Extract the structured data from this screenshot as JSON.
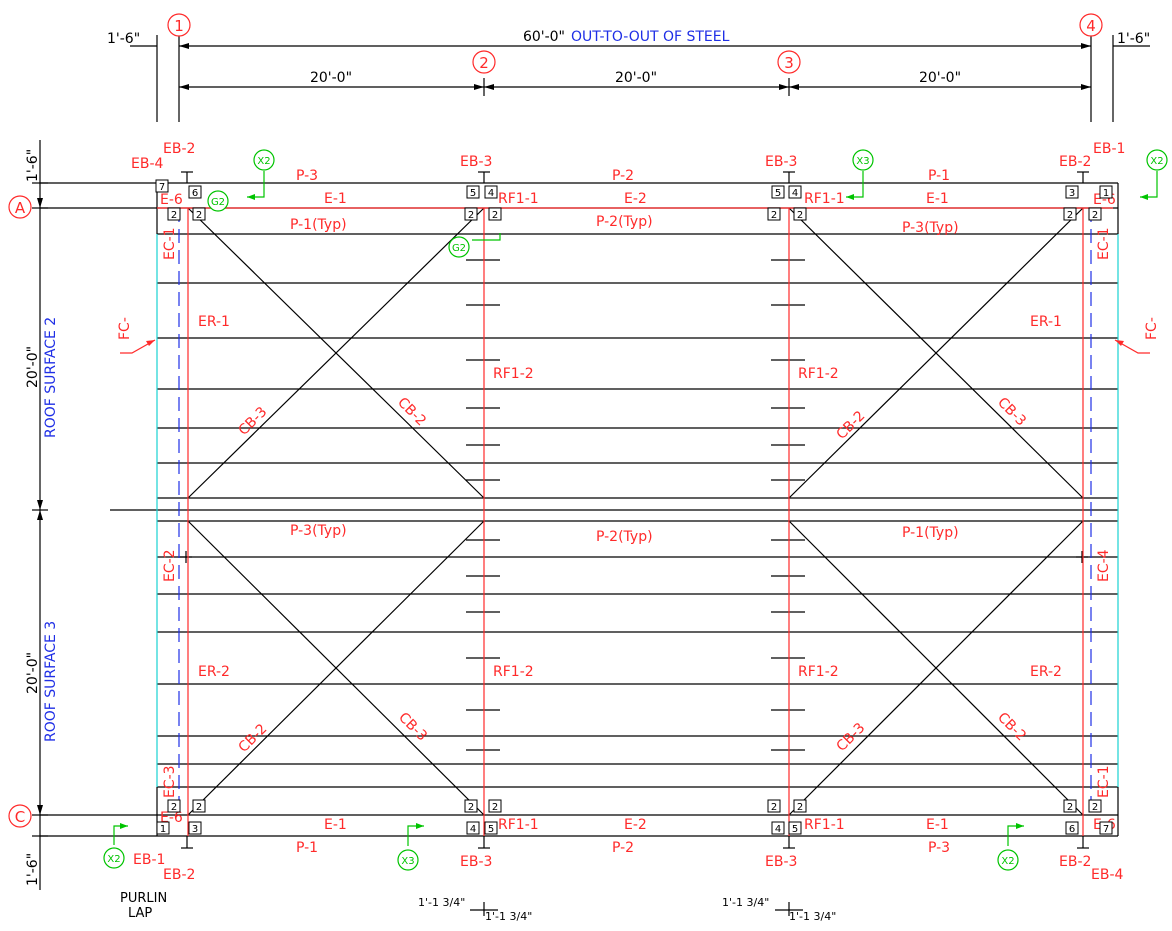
{
  "dimensions": {
    "overall": "60'-0\"",
    "overall_note": "OUT-TO-OUT OF STEEL",
    "bay": "20'-0\"",
    "offset": "1'-6\"",
    "lap_a": "1'-1 3/4\"",
    "lap_b": "1'-1 3/4\""
  },
  "gridlines": {
    "columns": [
      "1",
      "2",
      "3",
      "4"
    ],
    "rows": [
      "A",
      "C"
    ]
  },
  "roof_surfaces": [
    "ROOF SURFACE 2",
    "ROOF SURFACE 3"
  ],
  "purlin_lap": [
    "PURLIN",
    "LAP"
  ],
  "members": {
    "eb1": "EB-1",
    "eb2": "EB-2",
    "eb3": "EB-3",
    "eb4": "EB-4",
    "p1": "P-1",
    "p2": "P-2",
    "p3": "P-3",
    "e1": "E-1",
    "e2": "E-2",
    "e6": "E-6",
    "rf11": "RF1-1",
    "rf12": "RF1-2",
    "p1typ": "P-1(Typ)",
    "p2typ": "P-2(Typ)",
    "p3typ": "P-3(Typ)",
    "ec1": "EC-1",
    "ec2": "EC-2",
    "ec3": "EC-3",
    "ec4": "EC-4",
    "er1": "ER-1",
    "er2": "ER-2",
    "cb2": "CB-2",
    "cb3": "CB-3",
    "fc": "FC-"
  },
  "section_tags": {
    "x2": "X2",
    "x3": "X3",
    "g2": "G2"
  },
  "box_numbers": [
    "1",
    "2",
    "3",
    "4",
    "5",
    "6",
    "7"
  ],
  "colors": {
    "member_labels": "#ff2a2a",
    "dimension_notes": "#1f2fe6",
    "section_tags": "#00c400",
    "edge_lines": "#19d3d3",
    "linework": "#000000"
  }
}
